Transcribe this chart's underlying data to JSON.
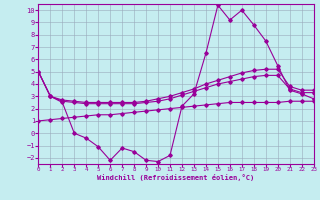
{
  "xlabel": "Windchill (Refroidissement éolien,°C)",
  "bg_color": "#c5edf0",
  "line_color": "#990099",
  "grid_color": "#99aabb",
  "xlim": [
    0,
    23
  ],
  "ylim": [
    -2.5,
    10.5
  ],
  "xticks": [
    0,
    1,
    2,
    3,
    4,
    5,
    6,
    7,
    8,
    9,
    10,
    11,
    12,
    13,
    14,
    15,
    16,
    17,
    18,
    19,
    20,
    21,
    22,
    23
  ],
  "yticks": [
    -2,
    -1,
    0,
    1,
    2,
    3,
    4,
    5,
    6,
    7,
    8,
    9,
    10
  ],
  "line1_x": [
    0,
    1,
    2,
    3,
    4,
    5,
    6,
    7,
    8,
    9,
    10,
    11,
    12,
    13,
    14,
    15,
    16,
    17,
    18,
    19,
    20,
    21,
    22,
    23
  ],
  "line1_y": [
    5.0,
    3.0,
    2.7,
    2.6,
    2.5,
    2.5,
    2.5,
    2.5,
    2.5,
    2.6,
    2.8,
    3.0,
    3.3,
    3.6,
    4.0,
    4.3,
    4.6,
    4.9,
    5.1,
    5.2,
    5.2,
    3.8,
    3.5,
    3.5
  ],
  "line2_x": [
    0,
    1,
    2,
    3,
    4,
    5,
    6,
    7,
    8,
    9,
    10,
    11,
    12,
    13,
    14,
    15,
    16,
    17,
    18,
    19,
    20,
    21,
    22,
    23
  ],
  "line2_y": [
    5.0,
    3.0,
    2.6,
    2.5,
    2.4,
    2.4,
    2.4,
    2.4,
    2.4,
    2.5,
    2.6,
    2.8,
    3.1,
    3.4,
    3.7,
    4.0,
    4.2,
    4.4,
    4.6,
    4.7,
    4.7,
    3.6,
    3.3,
    3.3
  ],
  "line3_x": [
    0,
    1,
    2,
    3,
    4,
    5,
    6,
    7,
    8,
    9,
    10,
    11,
    12,
    13,
    14,
    15,
    16,
    17,
    18,
    19,
    20,
    21,
    22,
    23
  ],
  "line3_y": [
    5.0,
    3.0,
    2.5,
    0.0,
    -0.4,
    -1.1,
    -2.2,
    -1.2,
    -1.5,
    -2.2,
    -2.3,
    -1.8,
    2.2,
    3.2,
    6.5,
    10.4,
    9.2,
    10.0,
    8.8,
    7.5,
    5.5,
    3.5,
    3.2,
    2.8
  ],
  "line4_x": [
    0,
    1,
    2,
    3,
    4,
    5,
    6,
    7,
    8,
    9,
    10,
    11,
    12,
    13,
    14,
    15,
    16,
    17,
    18,
    19,
    20,
    21,
    22,
    23
  ],
  "line4_y": [
    1.0,
    1.1,
    1.2,
    1.3,
    1.4,
    1.5,
    1.5,
    1.6,
    1.7,
    1.8,
    1.9,
    2.0,
    2.1,
    2.2,
    2.3,
    2.4,
    2.5,
    2.5,
    2.5,
    2.5,
    2.5,
    2.6,
    2.6,
    2.6
  ]
}
